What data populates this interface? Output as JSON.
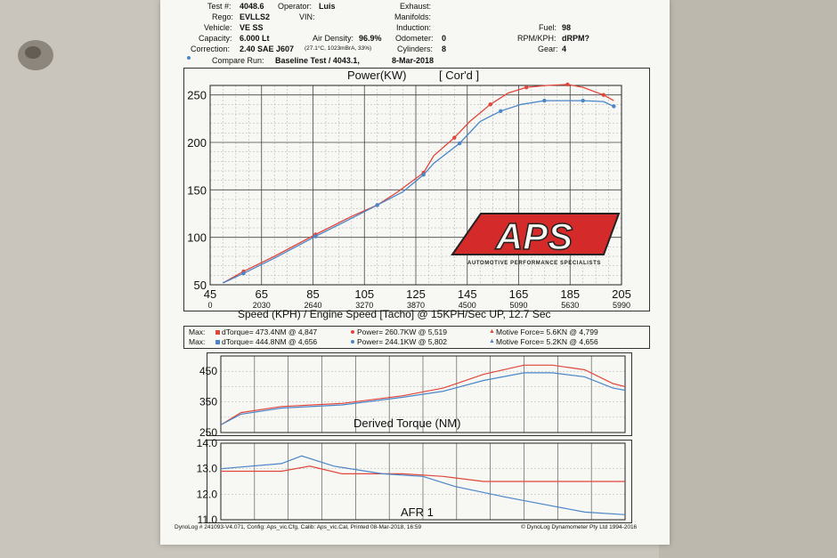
{
  "header": {
    "test_label": "Test #:",
    "test_value": "4048.6",
    "rego_label": "Rego:",
    "rego_value": "EVLLS2",
    "vehicle_label": "Vehicle:",
    "vehicle_value": "VE SS",
    "capacity_label": "Capacity:",
    "capacity_value": "6.000 Lt",
    "correction_label": "Correction:",
    "correction_value": "2.40 SAE J607",
    "operator_label": "Operator:",
    "operator_value": "Luis",
    "vin_label": "VIN:",
    "air_density_label": "Air Density:",
    "air_density_value": "96.9%",
    "air_density_detail": "(27.1°C, 1023mBrA, 33%)",
    "exhaust_label": "Exhaust:",
    "manifolds_label": "Manifolds:",
    "induction_label": "Induction:",
    "odometer_label": "Odometer:",
    "odometer_value": "0",
    "cylinders_label": "Cylinders:",
    "cylinders_value": "8",
    "fuel_label": "Fuel:",
    "fuel_value": "98",
    "rpm_kph_label": "RPM/KPH:",
    "rpm_kph_value": "dRPM?",
    "gear_label": "Gear:",
    "gear_value": "4",
    "compare_label": "Compare Run:",
    "compare_value": "Baseline Test / 4043.1,",
    "compare_date": "8-Mar-2018"
  },
  "power_chart": {
    "title": "Power(KW)",
    "cord": "[ Cor'd ]",
    "y_ticks": [
      "250",
      "200",
      "150",
      "100",
      "50"
    ],
    "x_ticks": [
      "45",
      "65",
      "85",
      "105",
      "125",
      "145",
      "165",
      "185",
      "205"
    ],
    "rpm_ticks": [
      "0",
      "2030",
      "2640",
      "3270",
      "3870",
      "4500",
      "5090",
      "5630",
      "5990"
    ],
    "x_caption": "Speed (KPH) / Engine Speed [Tacho] @ 15KPH/Sec UP, 12.7 Sec"
  },
  "logo": {
    "text": "APS",
    "tagline": "AUTOMOTIVE PERFORMANCE SPECIALISTS"
  },
  "maxes": {
    "label": "Max:",
    "rows": [
      {
        "torque": "dTorque= 473.4NM @ 4,847",
        "power": "Power= 260.7KW @ 5,519",
        "force": "Motive Force= 5.6KN @ 4,799"
      },
      {
        "torque": "dTorque= 444.8NM @ 4,656",
        "power": "Power= 244.1KW @ 5,802",
        "force": "Motive Force= 5.2KN @ 4,656"
      }
    ]
  },
  "torque_chart": {
    "title": "Derived Torque (NM)",
    "y_ticks": [
      "450",
      "350",
      "250"
    ]
  },
  "afr_chart": {
    "title": "AFR 1",
    "y_ticks": [
      "14.0",
      "13.0",
      "12.0",
      "11.0"
    ]
  },
  "footer": {
    "left": "DynoLog # 241093-V4.071, Config: Aps_vic.Cfg, Calib: Aps_vic.Cal, Printed 08-Mar-2018, 16:59",
    "right": "© DynoLog Dynamometer Pty Ltd 1994-2016"
  },
  "colors": {
    "current_run": "#e0463c",
    "baseline_run": "#4a86c8",
    "logo_red": "#d42a2a"
  },
  "chart_data": [
    {
      "type": "line",
      "title": "Power(KW)",
      "xlabel": "Speed (KPH) / Engine Speed [Tacho] @ 15KPH/Sec UP, 12.7 Sec",
      "ylabel": "",
      "xlim": [
        45,
        205
      ],
      "ylim": [
        50,
        260
      ],
      "series": [
        {
          "color": "#e0463c",
          "points": [
            [
              50,
              52
            ],
            [
              58,
              64
            ],
            [
              70,
              80
            ],
            [
              86,
              103
            ],
            [
              100,
              122
            ],
            [
              110,
              134
            ],
            [
              118,
              148
            ],
            [
              128,
              168
            ],
            [
              132,
              186
            ],
            [
              140,
              205
            ],
            [
              146,
              222
            ],
            [
              154,
              240
            ],
            [
              161,
              252
            ],
            [
              168,
              258
            ],
            [
              176,
              260
            ],
            [
              184,
              261
            ],
            [
              190,
              258
            ],
            [
              198,
              250
            ],
            [
              202,
              244
            ]
          ]
        },
        {
          "color": "#4a86c8",
          "points": [
            [
              50,
              52
            ],
            [
              58,
              62
            ],
            [
              70,
              78
            ],
            [
              86,
              101
            ],
            [
              100,
              120
            ],
            [
              110,
              134
            ],
            [
              120,
              148
            ],
            [
              128,
              166
            ],
            [
              132,
              178
            ],
            [
              142,
              199
            ],
            [
              150,
              222
            ],
            [
              158,
              233
            ],
            [
              166,
              240
            ],
            [
              175,
              244
            ],
            [
              184,
              244
            ],
            [
              190,
              244
            ],
            [
              198,
              243
            ],
            [
              202,
              238
            ]
          ]
        }
      ]
    },
    {
      "type": "line",
      "title": "Derived Torque (NM)",
      "ylim": [
        250,
        500
      ],
      "series": [
        {
          "color": "#e0463c",
          "points": [
            [
              0,
              275
            ],
            [
              0.05,
              315
            ],
            [
              0.15,
              335
            ],
            [
              0.3,
              345
            ],
            [
              0.45,
              370
            ],
            [
              0.55,
              395
            ],
            [
              0.65,
              440
            ],
            [
              0.75,
              470
            ],
            [
              0.82,
              470
            ],
            [
              0.9,
              455
            ],
            [
              0.97,
              410
            ],
            [
              1,
              400
            ]
          ]
        },
        {
          "color": "#4a86c8",
          "points": [
            [
              0,
              275
            ],
            [
              0.05,
              310
            ],
            [
              0.15,
              330
            ],
            [
              0.3,
              340
            ],
            [
              0.45,
              365
            ],
            [
              0.55,
              385
            ],
            [
              0.65,
              420
            ],
            [
              0.75,
              445
            ],
            [
              0.82,
              445
            ],
            [
              0.9,
              432
            ],
            [
              0.97,
              395
            ],
            [
              1,
              388
            ]
          ]
        }
      ]
    },
    {
      "type": "line",
      "title": "AFR 1",
      "ylim": [
        11,
        14
      ],
      "series": [
        {
          "color": "#e0463c",
          "points": [
            [
              0,
              12.9
            ],
            [
              0.15,
              12.9
            ],
            [
              0.22,
              13.1
            ],
            [
              0.3,
              12.8
            ],
            [
              0.45,
              12.8
            ],
            [
              0.55,
              12.7
            ],
            [
              0.65,
              12.5
            ],
            [
              0.8,
              12.5
            ],
            [
              1,
              12.5
            ]
          ]
        },
        {
          "color": "#4a86c8",
          "points": [
            [
              0,
              13.0
            ],
            [
              0.15,
              13.2
            ],
            [
              0.2,
              13.5
            ],
            [
              0.28,
              13.1
            ],
            [
              0.4,
              12.8
            ],
            [
              0.5,
              12.7
            ],
            [
              0.58,
              12.3
            ],
            [
              0.7,
              11.9
            ],
            [
              0.8,
              11.6
            ],
            [
              0.9,
              11.3
            ],
            [
              1,
              11.2
            ]
          ]
        }
      ]
    }
  ]
}
